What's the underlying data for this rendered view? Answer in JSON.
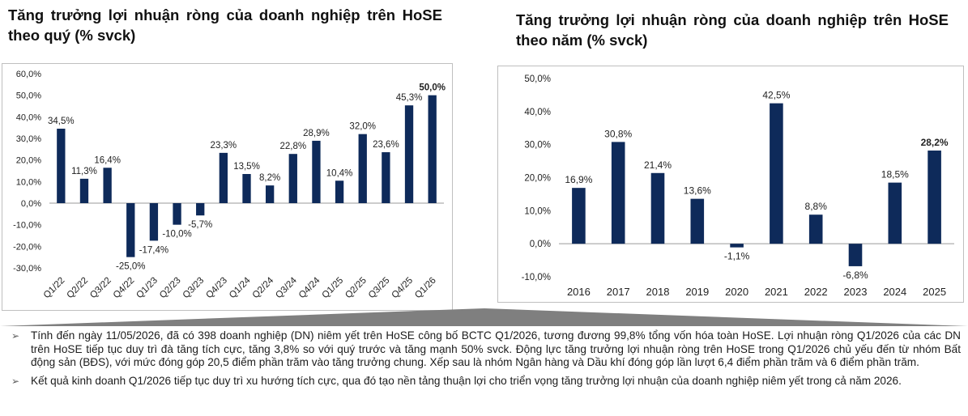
{
  "chart_data": [
    {
      "type": "bar",
      "title": "Tăng trưởng lợi nhuận ròng của doanh nghiệp trên HoSE theo quý (% svck)",
      "categories": [
        "Q1/22",
        "Q2/22",
        "Q3/22",
        "Q4/22",
        "Q1/23",
        "Q2/23",
        "Q3/23",
        "Q4/23",
        "Q1/24",
        "Q2/24",
        "Q3/24",
        "Q4/24",
        "Q1/25",
        "Q2/25",
        "Q3/25",
        "Q4/25",
        "Q1/26"
      ],
      "values": [
        34.5,
        11.3,
        16.4,
        -25.0,
        -17.4,
        -10.0,
        -5.7,
        23.3,
        13.5,
        8.2,
        22.8,
        28.9,
        10.4,
        32.0,
        23.6,
        45.3,
        50.0
      ],
      "value_labels": [
        "34,5%",
        "11,3%",
        "16,4%",
        "-25,0%",
        "-17,4%",
        "-10,0%",
        "-5,7%",
        "23,3%",
        "13,5%",
        "8,2%",
        "22,8%",
        "28,9%",
        "10,4%",
        "32,0%",
        "23,6%",
        "45,3%",
        "50,0%"
      ],
      "highlight_index": 16,
      "ylim": [
        -30,
        60
      ],
      "yticks": [
        -30,
        -20,
        -10,
        0,
        10,
        20,
        30,
        40,
        50,
        60
      ],
      "ytick_labels": [
        "-30,0%",
        "-20,0%",
        "-10,0%",
        "0,0%",
        "10,0%",
        "20,0%",
        "30,0%",
        "40,0%",
        "50,0%",
        "60,0%"
      ],
      "bar_color": "#0e2a5a",
      "grid": false
    },
    {
      "type": "bar",
      "title": "Tăng trưởng lợi nhuận ròng của doanh nghiệp trên HoSE theo năm (% svck)",
      "categories": [
        "2016",
        "2017",
        "2018",
        "2019",
        "2020",
        "2021",
        "2022",
        "2023",
        "2024",
        "2025"
      ],
      "values": [
        16.9,
        30.8,
        21.4,
        13.6,
        -1.1,
        42.5,
        8.8,
        -6.8,
        18.5,
        28.2
      ],
      "value_labels": [
        "16,9%",
        "30,8%",
        "21,4%",
        "13,6%",
        "-1,1%",
        "42,5%",
        "8,8%",
        "-6,8%",
        "18,5%",
        "28,2%"
      ],
      "highlight_index": 9,
      "ylim": [
        -10,
        50
      ],
      "yticks": [
        -10,
        0,
        10,
        20,
        30,
        40,
        50
      ],
      "ytick_labels": [
        "-10,0%",
        "0,0%",
        "10,0%",
        "20,0%",
        "30,0%",
        "40,0%",
        "50,0%"
      ],
      "bar_color": "#0e2a5a",
      "grid": false
    }
  ],
  "notes": [
    "Tính đến ngày 11/05/2026, đã có 398 doanh nghiệp (DN) niêm yết trên HoSE công bố BCTC Q1/2026, tương đương 99,8% tổng vốn hóa toàn HoSE. Lợi nhuận ròng Q1/2026 của các DN trên HoSE tiếp tục duy trì đà tăng tích cực, tăng 3,8% so với quý trước và tăng mạnh 50% svck. Động lực tăng trưởng lợi nhuận ròng trên HoSE trong Q1/2026 chủ yếu đến từ nhóm Bất động sản (BĐS), với mức đóng góp 20,5 điểm phần trăm vào tăng trưởng chung. Xếp sau là nhóm Ngân hàng và Dầu khí đóng góp lần lượt 6,4 điểm phần trăm và 6 điểm phần trăm.",
    "Kết quả kinh doanh Q1/2026 tiếp tục duy trì xu hướng tích cực, qua đó tạo nền tảng thuận lợi cho triển vọng tăng trưởng lợi nhuận của doanh nghiệp niêm yết trong cả năm 2026."
  ],
  "bullet_icon": "arrow-bullet-icon"
}
